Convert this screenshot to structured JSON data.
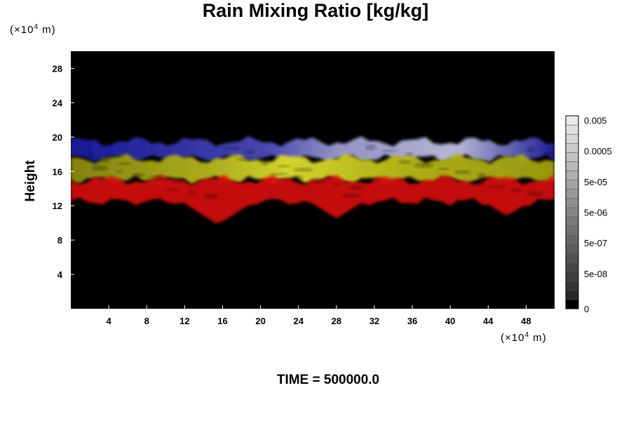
{
  "chart_data": {
    "type": "heatmap",
    "title": "Rain Mixing Ratio [kg/kg]",
    "ylabel": "Height",
    "y_unit": "(×10",
    "y_unit_exp": "4",
    "y_unit_tail": " m)",
    "x_unit": "(×10",
    "x_unit_exp": "4",
    "x_unit_tail": " m)",
    "footer": "TIME = 500000.0",
    "xlim": [
      0,
      51
    ],
    "ylim": [
      0,
      30
    ],
    "x_ticks": [
      "4",
      "8",
      "12",
      "16",
      "20",
      "24",
      "28",
      "32",
      "36",
      "40",
      "44",
      "48"
    ],
    "x_tick_values": [
      4,
      8,
      12,
      16,
      20,
      24,
      28,
      32,
      36,
      40,
      44,
      48
    ],
    "y_ticks": [
      "4",
      "8",
      "12",
      "16",
      "20",
      "24",
      "28"
    ],
    "y_tick_values": [
      4,
      8,
      12,
      16,
      20,
      24,
      28
    ],
    "colorbar": {
      "labels": [
        "0",
        "5e-08",
        "5e-07",
        "5e-06",
        "5e-05",
        "0.0005",
        "0.005"
      ],
      "levels": 21
    },
    "bands": [
      {
        "name": "blue",
        "color": "#1f1fb4",
        "y_bottom": 17.5,
        "y_top": 19.5
      },
      {
        "name": "yellow",
        "color": "#c8c818",
        "y_bottom": 15.0,
        "y_top": 17.5
      },
      {
        "name": "red",
        "color": "#d41010",
        "y_bottom": 12.5,
        "y_top": 15.0
      }
    ],
    "red_extensions": [
      {
        "x": 15.5,
        "y_bottom": 9.8
      },
      {
        "x": 28.0,
        "y_bottom": 10.5
      },
      {
        "x": 46.0,
        "y_bottom": 10.8
      }
    ]
  }
}
